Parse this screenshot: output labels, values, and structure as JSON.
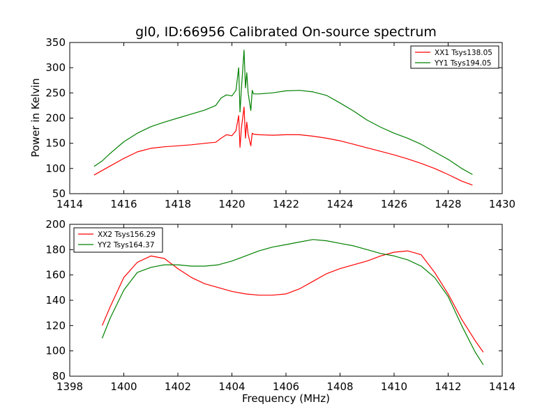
{
  "figure": {
    "title": "gl0, ID:66956 Calibrated On-source spectrum",
    "xlabel": "Frequency (MHz)",
    "ylabel": "Power in Kelvin"
  },
  "chart_data": [
    {
      "type": "line",
      "title": "gl0, ID:66956 Calibrated On-source spectrum",
      "xlabel": "",
      "ylabel": "Power in Kelvin",
      "xlim": [
        1414,
        1430
      ],
      "ylim": [
        50,
        350
      ],
      "xticks": [
        1414,
        1416,
        1418,
        1420,
        1422,
        1424,
        1426,
        1428,
        1430
      ],
      "yticks": [
        50,
        100,
        150,
        200,
        250,
        300,
        350
      ],
      "grid": false,
      "legend_position": "top-right",
      "series": [
        {
          "name": "XX1 Tsys138.05",
          "color": "#ff0000",
          "x": [
            1414.9,
            1415.2,
            1415.5,
            1416.0,
            1416.5,
            1417.0,
            1417.5,
            1418.0,
            1418.5,
            1419.0,
            1419.4,
            1419.6,
            1419.8,
            1420.0,
            1420.15,
            1420.25,
            1420.3,
            1420.35,
            1420.45,
            1420.5,
            1420.55,
            1420.6,
            1420.7,
            1420.75,
            1420.8,
            1421.0,
            1421.5,
            1422.0,
            1422.5,
            1423.0,
            1423.5,
            1424.0,
            1424.5,
            1425.0,
            1425.5,
            1426.0,
            1426.5,
            1427.0,
            1427.5,
            1428.0,
            1428.5,
            1428.9
          ],
          "y": [
            87,
            96,
            105,
            120,
            133,
            140,
            143,
            145,
            147,
            150,
            152,
            160,
            167,
            165,
            175,
            205,
            142,
            180,
            222,
            160,
            192,
            168,
            145,
            170,
            168,
            167,
            166,
            167,
            167,
            164,
            160,
            155,
            148,
            141,
            134,
            127,
            119,
            110,
            100,
            88,
            75,
            67
          ]
        },
        {
          "name": "YY1 Tsys194.05",
          "color": "#008000",
          "x": [
            1414.9,
            1415.2,
            1415.5,
            1416.0,
            1416.5,
            1417.0,
            1417.5,
            1418.0,
            1418.5,
            1419.0,
            1419.4,
            1419.6,
            1419.8,
            1420.0,
            1420.15,
            1420.25,
            1420.3,
            1420.35,
            1420.45,
            1420.5,
            1420.55,
            1420.6,
            1420.7,
            1420.75,
            1420.8,
            1421.0,
            1421.5,
            1422.0,
            1422.5,
            1423.0,
            1423.5,
            1424.0,
            1424.5,
            1425.0,
            1425.5,
            1426.0,
            1426.5,
            1427.0,
            1427.5,
            1428.0,
            1428.5,
            1428.9
          ],
          "y": [
            104,
            115,
            130,
            153,
            170,
            183,
            192,
            200,
            208,
            216,
            225,
            240,
            246,
            244,
            255,
            300,
            212,
            258,
            335,
            260,
            290,
            250,
            215,
            255,
            248,
            248,
            250,
            254,
            255,
            252,
            245,
            230,
            214,
            196,
            182,
            170,
            160,
            148,
            133,
            118,
            100,
            88
          ]
        }
      ]
    },
    {
      "type": "line",
      "title": "",
      "xlabel": "Frequency (MHz)",
      "ylabel": "",
      "xlim": [
        1398,
        1414
      ],
      "ylim": [
        80,
        200
      ],
      "xticks": [
        1398,
        1400,
        1402,
        1404,
        1406,
        1408,
        1410,
        1412,
        1414
      ],
      "yticks": [
        80,
        100,
        120,
        140,
        160,
        180,
        200
      ],
      "grid": false,
      "legend_position": "top-left",
      "series": [
        {
          "name": "XX2 Tsys156.29",
          "color": "#ff0000",
          "x": [
            1399.2,
            1399.5,
            1400.0,
            1400.5,
            1401.0,
            1401.5,
            1402.0,
            1402.5,
            1403.0,
            1403.5,
            1404.0,
            1404.5,
            1405.0,
            1405.5,
            1406.0,
            1406.5,
            1407.0,
            1407.5,
            1408.0,
            1408.5,
            1409.0,
            1409.5,
            1410.0,
            1410.5,
            1411.0,
            1411.5,
            1412.0,
            1412.5,
            1413.0,
            1413.3
          ],
          "y": [
            120,
            135,
            158,
            170,
            175,
            173,
            165,
            158,
            153,
            150,
            147,
            145,
            144,
            144,
            145,
            149,
            155,
            161,
            165,
            168,
            171,
            175,
            178,
            179,
            176,
            162,
            145,
            125,
            108,
            99
          ]
        },
        {
          "name": "YY2 Tsys164.37",
          "color": "#008000",
          "x": [
            1399.2,
            1399.5,
            1400.0,
            1400.5,
            1401.0,
            1401.5,
            1402.0,
            1402.5,
            1403.0,
            1403.5,
            1404.0,
            1404.5,
            1405.0,
            1405.5,
            1406.0,
            1406.5,
            1407.0,
            1407.5,
            1408.0,
            1408.5,
            1409.0,
            1409.5,
            1410.0,
            1410.5,
            1411.0,
            1411.5,
            1412.0,
            1412.5,
            1413.0,
            1413.3
          ],
          "y": [
            110,
            126,
            148,
            162,
            166,
            168,
            168,
            167,
            167,
            168,
            171,
            175,
            179,
            182,
            184,
            186,
            188,
            187,
            185,
            183,
            180,
            177,
            175,
            172,
            167,
            158,
            143,
            120,
            99,
            89
          ]
        }
      ]
    }
  ]
}
